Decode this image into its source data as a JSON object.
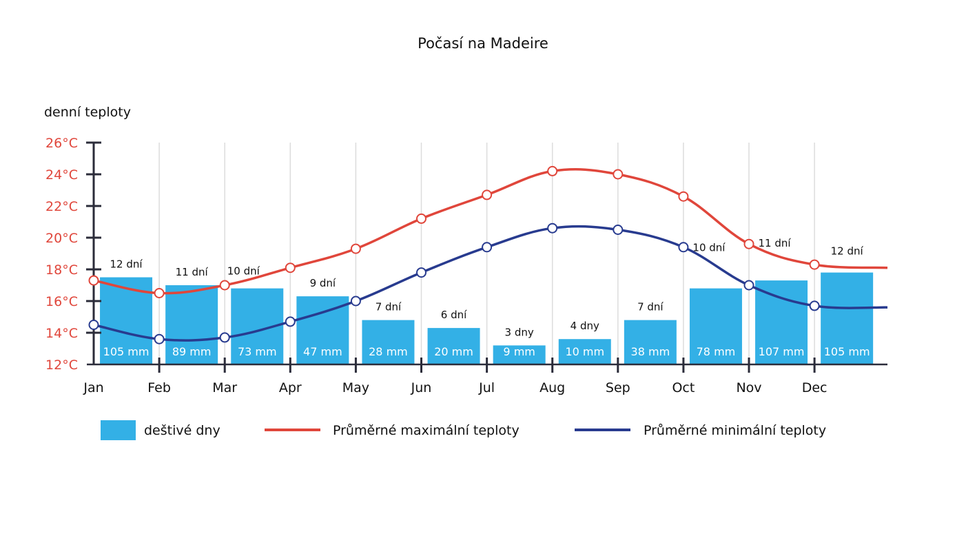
{
  "chart_data": {
    "type": "bar+line",
    "title": "Počasí na Madeire",
    "ylabel": "denní teploty",
    "ylim": [
      12,
      26
    ],
    "yticks": [
      "12°C",
      "14°C",
      "16°C",
      "18°C",
      "20°C",
      "22°C",
      "24°C",
      "26°C"
    ],
    "ytick_values": [
      12,
      14,
      16,
      18,
      20,
      22,
      24,
      26
    ],
    "categories": [
      "Jan",
      "Feb",
      "Mar",
      "Apr",
      "May",
      "Jun",
      "Jul",
      "Aug",
      "Sep",
      "Oct",
      "Nov",
      "Dec"
    ],
    "grid": "vertical",
    "legend_position": "bottom",
    "series": [
      {
        "name": "deštivé dny",
        "type": "bar",
        "color": "#33b0e6",
        "rainfall_labels": [
          "105 mm",
          "89 mm",
          "73 mm",
          "47 mm",
          "28 mm",
          "20 mm",
          "9 mm",
          "10 mm",
          "38 mm",
          "78 mm",
          "107 mm",
          "105 mm"
        ],
        "rainy_days_labels": [
          "12 dní",
          "11 dní",
          "10 dní",
          "9 dní",
          "7 dní",
          "6 dní",
          "3 dny",
          "4 dny",
          "7 dní",
          "10 dní",
          "11 dní",
          "12 dní"
        ],
        "rainy_days": [
          12,
          11,
          10,
          9,
          7,
          6,
          3,
          4,
          7,
          10,
          11,
          12
        ],
        "bar_level": [
          17.5,
          17.0,
          16.8,
          16.3,
          14.8,
          14.3,
          13.2,
          13.6,
          14.8,
          16.8,
          17.3,
          17.8
        ]
      },
      {
        "name": "Průměrné maximální teploty",
        "type": "line",
        "color": "#e0463b",
        "values": [
          17.3,
          16.5,
          17.0,
          18.1,
          19.3,
          21.2,
          22.7,
          24.2,
          24.0,
          22.6,
          19.6,
          18.3
        ],
        "tail_value": 18.1
      },
      {
        "name": "Průměrné minimální teploty",
        "type": "line",
        "color": "#283b8f",
        "values": [
          14.5,
          13.6,
          13.7,
          14.7,
          16.0,
          17.8,
          19.4,
          20.6,
          20.5,
          19.4,
          17.0,
          15.7
        ],
        "tail_value": 15.6
      }
    ]
  }
}
